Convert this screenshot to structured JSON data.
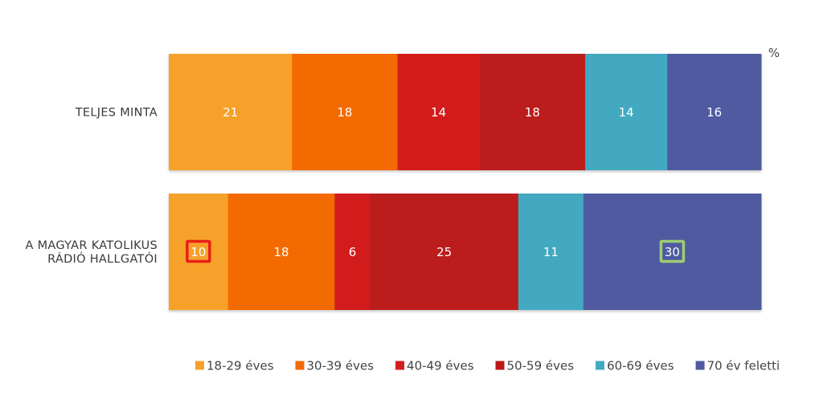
{
  "chart_data": {
    "type": "bar",
    "orientation": "horizontal",
    "stacked": true,
    "unit_label": "%",
    "categories": [
      "TELJES MINTA",
      "A MAGYAR KATOLIKUS RÁDIÓ HALLGATÓI"
    ],
    "category_lines": [
      [
        "TELJES MINTA"
      ],
      [
        "A MAGYAR KATOLIKUS",
        "RÁDIÓ HALLGATÓI"
      ]
    ],
    "series": [
      {
        "name": "18-29 éves",
        "color": "#f6a12a",
        "values": [
          21,
          10
        ]
      },
      {
        "name": "30-39 éves",
        "color": "#f36b06",
        "values": [
          18,
          18
        ]
      },
      {
        "name": "40-49 éves",
        "color": "#d21e1e",
        "values": [
          14,
          6
        ]
      },
      {
        "name": "50-59 éves",
        "color": "#bb1a1a",
        "values": [
          18,
          25
        ]
      },
      {
        "name": "60-69 éves",
        "color": "#43a9c1",
        "values": [
          14,
          11
        ]
      },
      {
        "name": "70 év feletti",
        "color": "#4f5aa0",
        "values": [
          16,
          30
        ]
      }
    ],
    "highlights": [
      {
        "row": 1,
        "series": 0,
        "color": "#e8201a"
      },
      {
        "row": 1,
        "series": 5,
        "color": "#9bcf6f"
      }
    ],
    "legend_position": "bottom",
    "grid": false
  }
}
